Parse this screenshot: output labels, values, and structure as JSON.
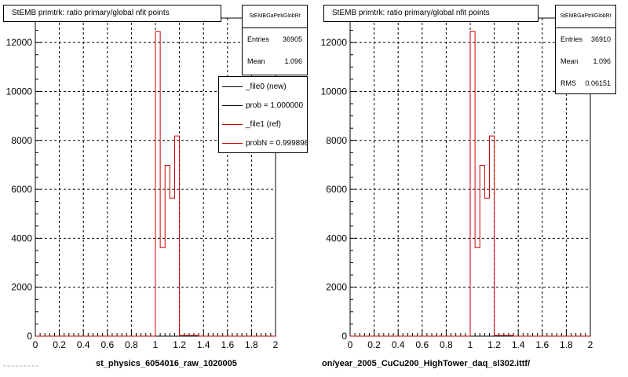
{
  "chart_data": [
    {
      "type": "histogram",
      "title": "StEMB primtrk: ratio primary/global nfit points",
      "xlabel": "st_physics_6054016_raw_1020005",
      "ylabel": "",
      "xlim": [
        0,
        2
      ],
      "ylim": [
        0,
        13000
      ],
      "x_ticks": [
        "0",
        "0.2",
        "0.4",
        "0.6",
        "0.8",
        "1",
        "1.2",
        "1.4",
        "1.6",
        "1.8",
        "2"
      ],
      "y_ticks": [
        "0",
        "2000",
        "4000",
        "6000",
        "8000",
        "10000",
        "12000"
      ],
      "grid": true,
      "stats": {
        "name": "StEMBGaPtrkGlobRt",
        "rows": [
          {
            "label": "Entries",
            "value": "36905"
          },
          {
            "label": "Mean",
            "value": "1.096"
          }
        ]
      },
      "legend": {
        "placement": "top-right",
        "entries": [
          {
            "label": "_file0 (new)",
            "color": "#000000"
          },
          {
            "label": "prob = 1.000000",
            "color": "#000000"
          },
          {
            "label": "_file1 (ref)",
            "color": "#cc0000"
          },
          {
            "label": "probN = 0.999898",
            "color": "#cc0000"
          }
        ]
      },
      "series": [
        {
          "color": "#cc0000",
          "bins": [
            {
              "x0": 0.0,
              "x1": 1.0,
              "y": 0
            },
            {
              "x0": 1.0,
              "x1": 1.04,
              "y": 12450
            },
            {
              "x0": 1.04,
              "x1": 1.08,
              "y": 3620
            },
            {
              "x0": 1.08,
              "x1": 1.12,
              "y": 6980
            },
            {
              "x0": 1.12,
              "x1": 1.16,
              "y": 5640
            },
            {
              "x0": 1.16,
              "x1": 1.2,
              "y": 8180
            },
            {
              "x0": 1.2,
              "x1": 1.36,
              "y": 30
            },
            {
              "x0": 1.36,
              "x1": 2.0,
              "y": 0
            }
          ]
        }
      ]
    },
    {
      "type": "histogram",
      "title": "StEMB primtrk: ratio primary/global nfit points",
      "xlabel": "on/year_2005_CuCu200_HighTower_daq_sl302.ittf/",
      "ylabel": "",
      "xlim": [
        0,
        2
      ],
      "ylim": [
        0,
        13000
      ],
      "x_ticks": [
        "0",
        "0.2",
        "0.4",
        "0.6",
        "0.8",
        "1",
        "1.2",
        "1.4",
        "1.6",
        "1.8",
        "2"
      ],
      "y_ticks": [
        "0",
        "2000",
        "4000",
        "6000",
        "8000",
        "10000",
        "12000"
      ],
      "grid": true,
      "stats": {
        "name": "StEMBGaPtrkGlobRt",
        "rows": [
          {
            "label": "Entries",
            "value": "36910"
          },
          {
            "label": "Mean",
            "value": "1.096"
          },
          {
            "label": "RMS",
            "value": "0.06151"
          }
        ]
      },
      "series": [
        {
          "color": "#cc0000",
          "bins": [
            {
              "x0": 0.0,
              "x1": 1.0,
              "y": 0
            },
            {
              "x0": 1.0,
              "x1": 1.04,
              "y": 12450
            },
            {
              "x0": 1.04,
              "x1": 1.08,
              "y": 3620
            },
            {
              "x0": 1.08,
              "x1": 1.12,
              "y": 6980
            },
            {
              "x0": 1.12,
              "x1": 1.16,
              "y": 5640
            },
            {
              "x0": 1.16,
              "x1": 1.2,
              "y": 8180
            },
            {
              "x0": 1.2,
              "x1": 1.36,
              "y": 30
            },
            {
              "x0": 1.36,
              "x1": 2.0,
              "y": 0
            }
          ]
        }
      ]
    }
  ],
  "footer": {
    "corner_text": "~ ~ ~ ~ ~ ~ ~ ~ ~"
  }
}
